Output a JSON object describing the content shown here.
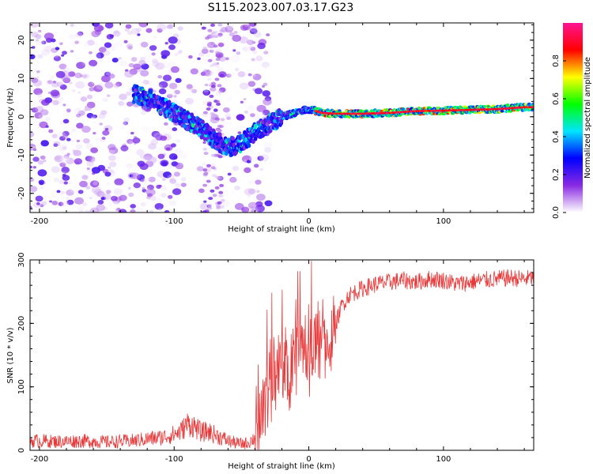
{
  "title": "S115.2023.007.03.17.G23",
  "chart_data": [
    {
      "type": "heatmap",
      "xlabel": "Height of straight line (km)",
      "ylabel": "Frequency (Hz)",
      "xlim": [
        -207,
        167
      ],
      "ylim": [
        -25,
        24.5
      ],
      "x_ticks": [
        -200,
        -100,
        0,
        100
      ],
      "y_ticks": [
        -20,
        -10,
        0,
        10,
        20
      ],
      "colorbar": {
        "label": "Normalized spectral amplitude",
        "range": [
          0,
          1
        ],
        "ticks": [
          "0.0",
          "0.2",
          "0.4",
          "0.6",
          "0.8"
        ],
        "colors": [
          "#ffffff",
          "#8a2be2",
          "#0000ff",
          "#00e5ff",
          "#00ff00",
          "#ffff00",
          "#ff0000",
          "#ff1493"
        ]
      },
      "ridge": {
        "x": [
          -130,
          -120,
          -110,
          -100,
          -90,
          -80,
          -70,
          -60,
          -50,
          -40,
          -30,
          -20,
          -10,
          0,
          10,
          20,
          40,
          60,
          80,
          100,
          120,
          140,
          160,
          167
        ],
        "frequency": [
          6,
          5,
          3,
          1,
          -1,
          -3,
          -6,
          -8,
          -7,
          -4,
          -2,
          0,
          1,
          2,
          1,
          0.8,
          0.8,
          1,
          1.5,
          1.6,
          1.8,
          2,
          2.5,
          2.5
        ]
      },
      "grid": false
    },
    {
      "type": "line",
      "xlabel": "Height of straight line (km)",
      "ylabel": "SNR (10 * v/v)",
      "xlim": [
        -207,
        167
      ],
      "ylim": [
        0,
        300
      ],
      "x_ticks": [
        -200,
        -100,
        0,
        100
      ],
      "y_ticks": [
        0,
        100,
        200,
        300
      ],
      "color": "#e8393a",
      "series": [
        {
          "x": [
            -207,
            -200,
            -190,
            -180,
            -170,
            -160,
            -150,
            -140,
            -130,
            -120,
            -110,
            -100,
            -95,
            -90,
            -85,
            -80,
            -75,
            -70,
            -65,
            -60,
            -55,
            -50,
            -45,
            -40,
            -35,
            -30,
            -25,
            -20,
            -15,
            -10,
            -5,
            0,
            5,
            10,
            15,
            20,
            25,
            30,
            40,
            50,
            60,
            70,
            80,
            90,
            100,
            110,
            120,
            130,
            140,
            150,
            160,
            167
          ],
          "y": [
            15,
            15,
            14,
            14,
            15,
            14,
            13,
            14,
            15,
            18,
            20,
            25,
            30,
            42,
            38,
            28,
            30,
            25,
            20,
            15,
            12,
            10,
            12,
            20,
            60,
            110,
            120,
            130,
            135,
            150,
            165,
            160,
            170,
            175,
            160,
            200,
            230,
            245,
            255,
            262,
            265,
            268,
            265,
            270,
            268,
            262,
            265,
            268,
            270,
            272,
            270,
            272
          ]
        }
      ],
      "grid": false
    }
  ]
}
